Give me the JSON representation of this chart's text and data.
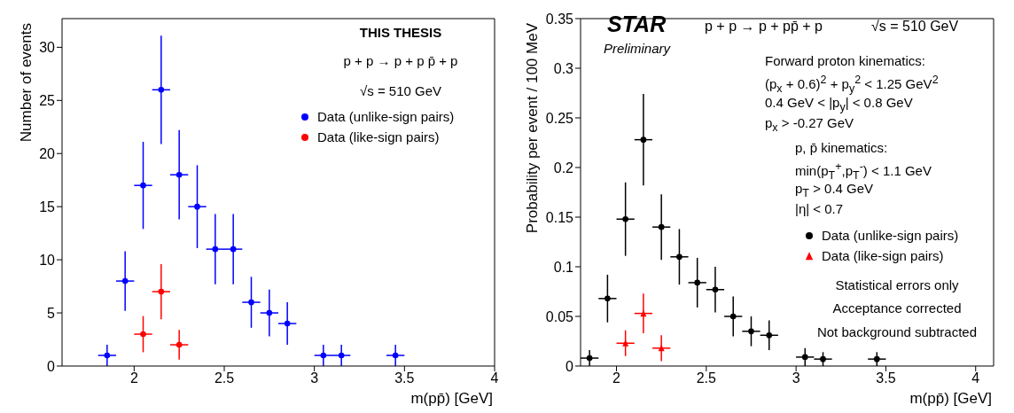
{
  "chart_data": [
    {
      "type": "scatter",
      "xlabel": "m(pp̄) [GeV]",
      "ylabel": "Number of events",
      "xlim": [
        1.6,
        4.0
      ],
      "ylim": [
        0,
        32.7
      ],
      "xticks": [
        2,
        2.5,
        3,
        3.5,
        4
      ],
      "yticks": [
        0,
        5,
        10,
        15,
        20,
        25,
        30
      ],
      "grid": false,
      "legend": "top right",
      "marker": "circle",
      "annotations": [
        "THIS THESIS",
        "p + p → p + p p̄ + p",
        "√s = 510 GeV"
      ],
      "series": [
        {
          "name": "Data (unlike-sign pairs)",
          "color": "#0000ff",
          "x": [
            1.85,
            1.95,
            2.05,
            2.15,
            2.25,
            2.35,
            2.45,
            2.55,
            2.65,
            2.75,
            2.85,
            3.05,
            3.15,
            3.45
          ],
          "values": [
            1,
            8,
            17,
            26,
            18,
            15,
            11,
            11,
            6,
            5,
            4,
            1,
            1,
            1
          ],
          "errors": [
            1,
            2.8,
            4.1,
            5.1,
            4.2,
            3.9,
            3.3,
            3.3,
            2.4,
            2.2,
            2,
            1,
            1,
            1
          ],
          "xerrors": [
            0.05,
            0.05,
            0.05,
            0.05,
            0.05,
            0.05,
            0.05,
            0.05,
            0.05,
            0.05,
            0.05,
            0.05,
            0.05,
            0.05
          ]
        },
        {
          "name": "Data (like-sign pairs)",
          "color": "#ff0000",
          "x": [
            2.05,
            2.15,
            2.25
          ],
          "values": [
            3,
            7,
            2
          ],
          "errors": [
            1.7,
            2.6,
            1.4
          ],
          "xerrors": [
            0.05,
            0.05,
            0.05
          ]
        }
      ]
    },
    {
      "type": "scatter",
      "xlabel": "m(pp̄) [GeV]",
      "ylabel": "Probability per event / 100 MeV",
      "xlim": [
        1.8,
        4.1
      ],
      "ylim": [
        0,
        0.35
      ],
      "xticks": [
        2,
        2.5,
        3,
        3.5,
        4
      ],
      "yticks": [
        0,
        0.05,
        0.1,
        0.15,
        0.2,
        0.25,
        0.3,
        0.35
      ],
      "grid": false,
      "legend": "right",
      "annotations": [
        "STAR",
        "Preliminary",
        "p + p → p + pp̄ + p",
        "√s = 510 GeV",
        "Forward proton kinematics:",
        "(p$_{x}$ + 0.6)$^{2}$ + p$_{y}$$^{2}$ < 1.25 GeV$^{2}$",
        "0.4 GeV < |p$_{y}$| < 0.8 GeV",
        "p$_{x}$ > -0.27 GeV",
        "p, p̄ kinematics:",
        "min(p$_{T}$$^{+}$,p$_{T}$$^{-}$) < 1.1 GeV",
        "p$_{T}$ > 0.4 GeV",
        "|η| < 0.7",
        "Statistical errors only",
        "Acceptance corrected",
        "Not background subtracted"
      ],
      "series": [
        {
          "name": "Data (unlike-sign pairs)",
          "color": "#000000",
          "marker": "circle",
          "x": [
            1.85,
            1.95,
            2.05,
            2.15,
            2.25,
            2.35,
            2.45,
            2.55,
            2.65,
            2.75,
            2.85,
            3.05,
            3.15,
            3.45
          ],
          "values": [
            0.008,
            0.068,
            0.148,
            0.228,
            0.14,
            0.11,
            0.084,
            0.077,
            0.05,
            0.035,
            0.031,
            0.009,
            0.007,
            0.007
          ],
          "errors": [
            0.008,
            0.024,
            0.037,
            0.046,
            0.033,
            0.028,
            0.025,
            0.023,
            0.02,
            0.015,
            0.015,
            0.009,
            0.007,
            0.007
          ],
          "xerrors": [
            0.05,
            0.05,
            0.05,
            0.05,
            0.05,
            0.05,
            0.05,
            0.05,
            0.05,
            0.05,
            0.05,
            0.05,
            0.05,
            0.05
          ]
        },
        {
          "name": "Data (like-sign pairs)",
          "color": "#ff0000",
          "marker": "triangle",
          "x": [
            2.05,
            2.15,
            2.25
          ],
          "values": [
            0.023,
            0.053,
            0.018
          ],
          "errors": [
            0.013,
            0.02,
            0.013
          ],
          "xerrors": [
            0.05,
            0.05,
            0.05
          ]
        }
      ]
    }
  ]
}
